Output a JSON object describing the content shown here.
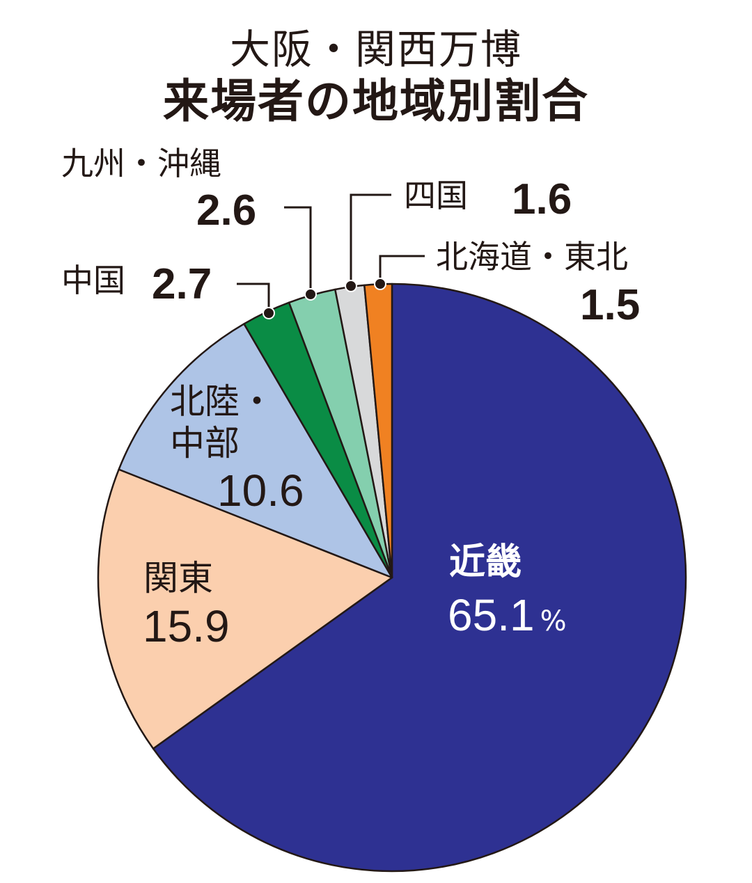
{
  "title": {
    "line1": "大阪・関西万博",
    "line2": "来場者の地域別割合"
  },
  "chart_data": {
    "type": "pie",
    "title": "大阪・関西万博 来場者の地域別割合",
    "unit": "%",
    "start_angle": "12 o'clock",
    "direction": "clockwise",
    "categories": [
      "近畿",
      "関東",
      "北陸・中部",
      "中国",
      "九州・沖縄",
      "四国",
      "北海道・東北"
    ],
    "values": [
      65.1,
      15.9,
      10.6,
      2.7,
      2.6,
      1.6,
      1.5
    ],
    "colors": [
      "#2e3192",
      "#fbcfae",
      "#aec4e6",
      "#0a8c45",
      "#84cfae",
      "#d8d9da",
      "#f08122"
    ]
  },
  "labels": {
    "kinki": {
      "name": "近畿",
      "value": "65.1",
      "unit": "%"
    },
    "kanto": {
      "name": "関東",
      "value": "15.9"
    },
    "hokuriku": {
      "name1": "北陸・",
      "name2": "中部",
      "value": "10.6"
    },
    "chugoku": {
      "name": "中国",
      "value": "2.7"
    },
    "kyushu": {
      "name": "九州・沖縄",
      "value": "2.6"
    },
    "shikoku": {
      "name": "四国",
      "value": "1.6"
    },
    "hokkaido": {
      "name": "北海道・東北",
      "value": "1.5"
    }
  }
}
